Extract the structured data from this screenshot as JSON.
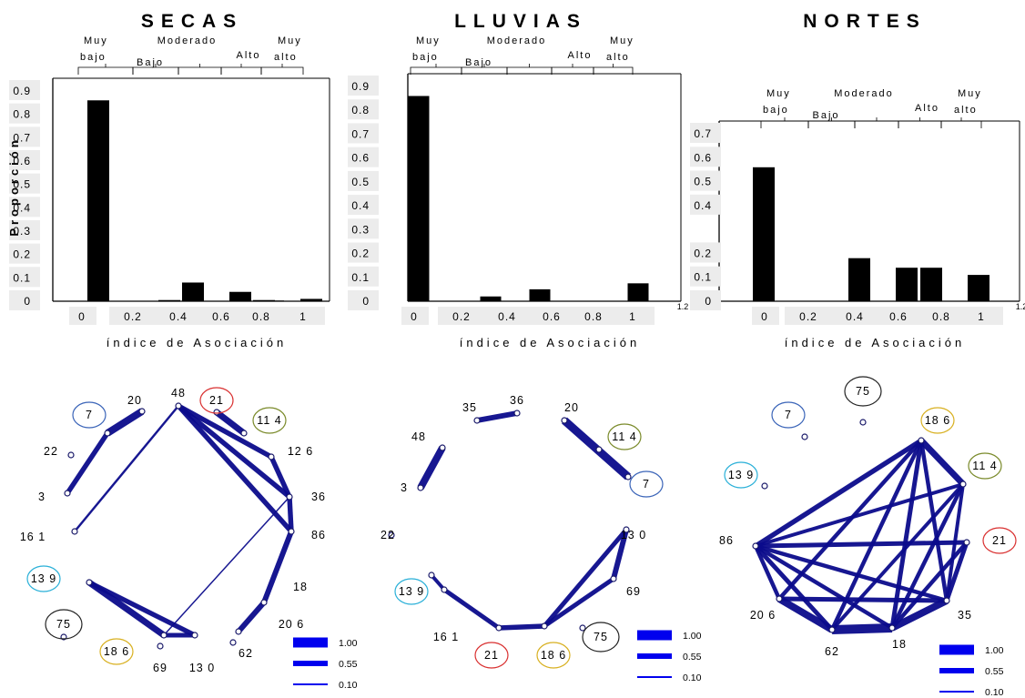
{
  "colors": {
    "bar": "#000000",
    "edge": "#0b0b8c",
    "legend_edge": "#0000ee",
    "tick_box": "#ececec"
  },
  "categories": {
    "muy_bajo": [
      "Muy",
      "bajo"
    ],
    "bajo": "Bajo",
    "moderado": "Moderado",
    "alto": "Alto",
    "muy_alto": [
      "Muy",
      "alto"
    ]
  },
  "chart_data": [
    {
      "type": "bar",
      "title": "SECAS",
      "xlabel": "índice de Asociación",
      "ylabel": "Proporción",
      "xticks": [
        "0",
        "0.2",
        "0.4",
        "0.6",
        "0.8",
        "1"
      ],
      "yticks": [
        "0",
        "0.1",
        "0.2",
        "0.3",
        "0.4",
        "0.5",
        "0.6",
        "0.7",
        "0.8",
        "0.9"
      ],
      "ylim": [
        0,
        0.9
      ],
      "x": [
        0,
        0.1,
        0.2,
        0.3,
        0.4,
        0.5,
        0.6,
        0.7,
        0.8,
        0.9,
        1.0
      ],
      "values": [
        0.86,
        0.0,
        0.0,
        0.005,
        0.08,
        0.0,
        0.04,
        0.005,
        0.003,
        0.0,
        0.01
      ]
    },
    {
      "type": "bar",
      "title": "LLUVIAS",
      "xlabel": "índice de Asociación",
      "xticks": [
        "0",
        "0.2",
        "0.4",
        "0.6",
        "0.8",
        "1"
      ],
      "yticks": [
        "0",
        "0.1",
        "0.2",
        "0.3",
        "0.4",
        "0.5",
        "0.6",
        "0.7",
        "0.8",
        "0.9"
      ],
      "ylim": [
        0,
        0.9
      ],
      "extra_tick": "1.2",
      "x": [
        0,
        0.1,
        0.2,
        0.3,
        0.4,
        0.5,
        0.6,
        0.7,
        0.8,
        0.9,
        1.0
      ],
      "values": [
        0.86,
        0.0,
        0.0,
        0.0,
        0.02,
        0.0,
        0.05,
        0.0,
        0.0,
        0.0,
        0.075
      ]
    },
    {
      "type": "bar",
      "title": "NORTES",
      "xlabel": "índice de Asociación",
      "xticks": [
        "0",
        "0.2",
        "0.4",
        "0.6",
        "0.8",
        "1"
      ],
      "yticks": [
        "0",
        "0.1",
        "0.2",
        "0.4",
        "0.5",
        "0.6",
        "0.7"
      ],
      "ylim": [
        0,
        0.7
      ],
      "extra_tick": "1.2",
      "x": [
        0,
        0.1,
        0.2,
        0.3,
        0.4,
        0.5,
        0.6,
        0.7,
        0.8,
        0.9,
        1.0
      ],
      "values": [
        0.56,
        0.0,
        0.0,
        0.0,
        0.18,
        0.0,
        0.14,
        0.14,
        0.0,
        0.0,
        0.11
      ]
    }
  ],
  "networks": [
    {
      "nodes": [
        {
          "id": "20",
          "label": "20",
          "circled": false
        },
        {
          "id": "48",
          "label": "48",
          "circled": false
        },
        {
          "id": "21",
          "label": "21",
          "circled": true,
          "color": "#d93030"
        },
        {
          "id": "114",
          "label": "11 4",
          "circled": true,
          "color": "#7a8a2a"
        },
        {
          "id": "7",
          "label": "7",
          "circled": true,
          "color": "#3a64b8"
        },
        {
          "id": "22",
          "label": "22",
          "circled": false
        },
        {
          "id": "126",
          "label": "12 6",
          "circled": false
        },
        {
          "id": "3",
          "label": "3",
          "circled": false
        },
        {
          "id": "36",
          "label": "36",
          "circled": false
        },
        {
          "id": "86",
          "label": "86",
          "circled": false
        },
        {
          "id": "161",
          "label": "16 1",
          "circled": false
        },
        {
          "id": "139",
          "label": "13 9",
          "circled": true,
          "color": "#2ab0d8"
        },
        {
          "id": "18",
          "label": "18",
          "circled": false
        },
        {
          "id": "75",
          "label": "75",
          "circled": true,
          "color": "#222222"
        },
        {
          "id": "206",
          "label": "20 6",
          "circled": false
        },
        {
          "id": "186",
          "label": "18 6",
          "circled": true,
          "color": "#d8b020"
        },
        {
          "id": "62",
          "label": "62",
          "circled": false
        },
        {
          "id": "69",
          "label": "69",
          "circled": false
        },
        {
          "id": "130",
          "label": "13 0",
          "circled": false
        }
      ],
      "edges": [
        {
          "a": "20",
          "b": "7",
          "w": 0.8
        },
        {
          "a": "7",
          "b": "3",
          "w": 0.55
        },
        {
          "a": "21",
          "b": "114",
          "w": 0.7
        },
        {
          "a": "126",
          "b": "36",
          "w": 0.55
        },
        {
          "a": "36",
          "b": "86",
          "w": 0.55
        },
        {
          "a": "86",
          "b": "18",
          "w": 0.6
        },
        {
          "a": "18",
          "b": "206",
          "w": 0.6
        },
        {
          "a": "139",
          "b": "186",
          "w": 0.7
        },
        {
          "a": "139",
          "b": "130",
          "w": 0.55
        },
        {
          "a": "186",
          "b": "130",
          "w": 0.5
        },
        {
          "a": "48",
          "b": "126",
          "w": 0.55
        },
        {
          "a": "48",
          "b": "36",
          "w": 0.55
        },
        {
          "a": "48",
          "b": "161",
          "w": 0.25
        },
        {
          "a": "48",
          "b": "86",
          "w": 0.55
        },
        {
          "a": "36",
          "b": "186",
          "w": 0.15
        }
      ],
      "legend": [
        "1.00",
        "0.55",
        "0.10"
      ]
    },
    {
      "nodes": [
        {
          "id": "35",
          "label": "35",
          "circled": false
        },
        {
          "id": "36",
          "label": "36",
          "circled": false
        },
        {
          "id": "20",
          "label": "20",
          "circled": false
        },
        {
          "id": "114",
          "label": "11 4",
          "circled": true,
          "color": "#7a8a2a"
        },
        {
          "id": "48",
          "label": "48",
          "circled": false
        },
        {
          "id": "7",
          "label": "7",
          "circled": true,
          "color": "#3a64b8"
        },
        {
          "id": "3",
          "label": "3",
          "circled": false
        },
        {
          "id": "22",
          "label": "22",
          "circled": false
        },
        {
          "id": "130",
          "label": "13 0",
          "circled": false
        },
        {
          "id": "139",
          "label": "13 9",
          "circled": true,
          "color": "#2ab0d8"
        },
        {
          "id": "69",
          "label": "69",
          "circled": false
        },
        {
          "id": "161",
          "label": "16 1",
          "circled": false
        },
        {
          "id": "75",
          "label": "75",
          "circled": true,
          "color": "#222222"
        },
        {
          "id": "21",
          "label": "21",
          "circled": true,
          "color": "#d93030"
        },
        {
          "id": "186",
          "label": "18 6",
          "circled": true,
          "color": "#d8b020"
        }
      ],
      "edges": [
        {
          "a": "35",
          "b": "36",
          "w": 0.6
        },
        {
          "a": "20",
          "b": "7",
          "w": 0.9
        },
        {
          "a": "48",
          "b": "3",
          "w": 0.8
        },
        {
          "a": "130",
          "b": "69",
          "w": 0.6
        },
        {
          "a": "130",
          "b": "186",
          "w": 0.5
        },
        {
          "a": "69",
          "b": "186",
          "w": 0.5
        },
        {
          "a": "161",
          "b": "21",
          "w": 0.5
        },
        {
          "a": "21",
          "b": "186",
          "w": 0.55
        },
        {
          "a": "139",
          "b": "161",
          "w": 0.4
        }
      ],
      "legend": [
        "1.00",
        "0.55",
        "0.10"
      ]
    },
    {
      "nodes": [
        {
          "id": "75",
          "label": "75",
          "circled": true,
          "color": "#222222"
        },
        {
          "id": "7",
          "label": "7",
          "circled": true,
          "color": "#3a64b8"
        },
        {
          "id": "186",
          "label": "18 6",
          "circled": true,
          "color": "#d8b020"
        },
        {
          "id": "139",
          "label": "13 9",
          "circled": true,
          "color": "#2ab0d8"
        },
        {
          "id": "114",
          "label": "11 4",
          "circled": true,
          "color": "#7a8a2a"
        },
        {
          "id": "86",
          "label": "86",
          "circled": false
        },
        {
          "id": "21",
          "label": "21",
          "circled": true,
          "color": "#d93030"
        },
        {
          "id": "206",
          "label": "20 6",
          "circled": false
        },
        {
          "id": "35",
          "label": "35",
          "circled": false
        },
        {
          "id": "62",
          "label": "62",
          "circled": false
        },
        {
          "id": "18",
          "label": "18",
          "circled": false
        }
      ],
      "edges": [
        {
          "a": "186",
          "b": "114",
          "w": 0.7
        },
        {
          "a": "186",
          "b": "86",
          "w": 0.55
        },
        {
          "a": "186",
          "b": "206",
          "w": 0.45
        },
        {
          "a": "186",
          "b": "62",
          "w": 0.45
        },
        {
          "a": "186",
          "b": "18",
          "w": 0.5
        },
        {
          "a": "186",
          "b": "35",
          "w": 0.45
        },
        {
          "a": "114",
          "b": "86",
          "w": 0.4
        },
        {
          "a": "114",
          "b": "18",
          "w": 0.45
        },
        {
          "a": "114",
          "b": "35",
          "w": 0.4
        },
        {
          "a": "114",
          "b": "62",
          "w": 0.4
        },
        {
          "a": "21",
          "b": "86",
          "w": 0.5
        },
        {
          "a": "21",
          "b": "35",
          "w": 0.5
        },
        {
          "a": "21",
          "b": "18",
          "w": 0.45
        },
        {
          "a": "86",
          "b": "35",
          "w": 0.45
        },
        {
          "a": "86",
          "b": "62",
          "w": 0.5
        },
        {
          "a": "86",
          "b": "206",
          "w": 0.45
        },
        {
          "a": "86",
          "b": "18",
          "w": 0.45
        },
        {
          "a": "206",
          "b": "62",
          "w": 0.8
        },
        {
          "a": "62",
          "b": "18",
          "w": 1.0
        },
        {
          "a": "18",
          "b": "35",
          "w": 0.8
        },
        {
          "a": "206",
          "b": "35",
          "w": 0.5
        }
      ],
      "legend": [
        "1.00",
        "0.55",
        "0.10"
      ]
    }
  ]
}
